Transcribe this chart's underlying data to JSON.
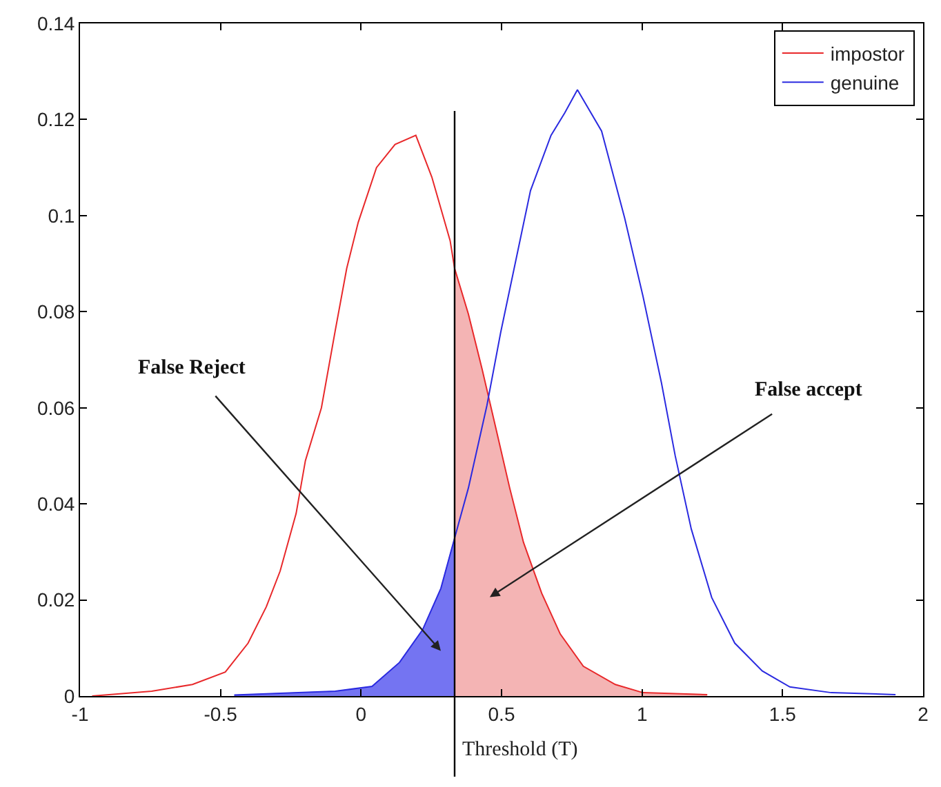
{
  "chart_data": {
    "type": "line",
    "xlabel": "Threshold (T)",
    "xlim": [
      -1,
      2
    ],
    "xticks": [
      -1,
      -0.5,
      0,
      0.5,
      1,
      1.5,
      2
    ],
    "ylim": [
      0,
      0.14
    ],
    "yticks": [
      0,
      0.02,
      0.04,
      0.06,
      0.08,
      0.1,
      0.12,
      0.14
    ],
    "legend": "top right",
    "marker": "none",
    "line_style": "solid",
    "series": [
      {
        "type": "area",
        "color": "#7474f2",
        "x": [
          -0.451,
          -0.092,
          0.039,
          0.137,
          0.219,
          0.284,
          0.333
        ],
        "values": [
          0.0002,
          0.001,
          0.002,
          0.007,
          0.0138,
          0.0224,
          0.0329
        ]
      },
      {
        "type": "area",
        "color": "#f4b4b4",
        "x": [
          0.333,
          0.382,
          0.431,
          0.48,
          0.529,
          0.578,
          0.643,
          0.709,
          0.791,
          0.905,
          1.003,
          1.232
        ],
        "values": [
          0.089,
          0.0795,
          0.068,
          0.0557,
          0.0433,
          0.032,
          0.0214,
          0.0129,
          0.0062,
          0.0024,
          0.0007,
          0.0003
        ]
      },
      {
        "name": "impostor",
        "color": "#e8282a",
        "x": [
          -0.957,
          -0.745,
          -0.6,
          -0.483,
          -0.402,
          -0.337,
          -0.288,
          -0.231,
          -0.198,
          -0.141,
          -0.092,
          -0.051,
          -0.01,
          0.055,
          0.121,
          0.195,
          0.252,
          0.317,
          0.333,
          0.382,
          0.431,
          0.48,
          0.529,
          0.578,
          0.643,
          0.709,
          0.791,
          0.905,
          1.003,
          1.232
        ],
        "values": [
          0.0,
          0.001,
          0.0024,
          0.005,
          0.011,
          0.0186,
          0.026,
          0.038,
          0.049,
          0.06,
          0.076,
          0.089,
          0.0986,
          0.11,
          0.1148,
          0.1167,
          0.108,
          0.0948,
          0.089,
          0.0795,
          0.068,
          0.0557,
          0.0433,
          0.032,
          0.0214,
          0.0129,
          0.0062,
          0.0024,
          0.0007,
          0.0003
        ]
      },
      {
        "name": "genuine",
        "color": "#2a2ae0",
        "x": [
          -0.451,
          -0.092,
          0.039,
          0.137,
          0.219,
          0.284,
          0.333,
          0.382,
          0.448,
          0.497,
          0.538,
          0.603,
          0.676,
          0.725,
          0.77,
          0.856,
          0.938,
          1.003,
          1.069,
          1.118,
          1.175,
          1.248,
          1.33,
          1.428,
          1.526,
          1.673,
          1.902
        ],
        "values": [
          0.0002,
          0.001,
          0.002,
          0.007,
          0.0138,
          0.0224,
          0.0329,
          0.0433,
          0.0605,
          0.0757,
          0.0871,
          0.1052,
          0.1167,
          0.1214,
          0.1262,
          0.1176,
          0.0995,
          0.0833,
          0.0652,
          0.05,
          0.0348,
          0.0205,
          0.011,
          0.0052,
          0.0019,
          0.0007,
          0.0003
        ]
      }
    ],
    "ref_lines": [
      {
        "axis": "x",
        "value": 0.333,
        "color": "#000000"
      }
    ],
    "annotations": [
      "False Reject",
      "False accept"
    ]
  }
}
